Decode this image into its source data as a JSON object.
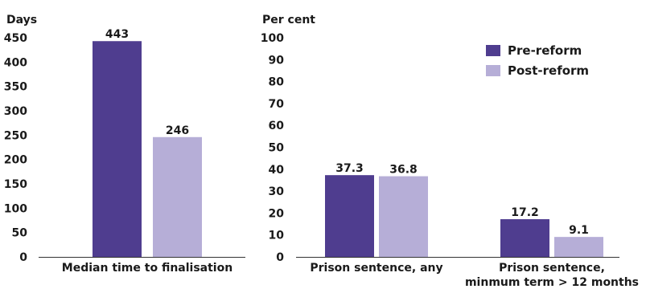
{
  "colors": {
    "pre": "#4f3d8f",
    "post": "#b6aed7",
    "axis": "#333333"
  },
  "legend": {
    "pre_label": "Pre-reform",
    "post_label": "Post-reform",
    "placement": "top-right"
  },
  "chart_data": [
    {
      "type": "bar",
      "ylabel": "Days",
      "ylim": [
        0,
        450
      ],
      "yticks": [
        0,
        50,
        100,
        150,
        200,
        250,
        300,
        350,
        400,
        450
      ],
      "categories": [
        "Median time to finalisation"
      ],
      "series": [
        {
          "name": "Pre-reform",
          "values": [
            443
          ]
        },
        {
          "name": "Post-reform",
          "values": [
            246
          ]
        }
      ]
    },
    {
      "type": "bar",
      "ylabel": "Per cent",
      "ylim": [
        0,
        100
      ],
      "yticks": [
        0,
        10,
        20,
        30,
        40,
        50,
        60,
        70,
        80,
        90,
        100
      ],
      "categories": [
        "Prison sentence, any",
        "Prison sentence, minmum term > 12 months"
      ],
      "category_lines": [
        [
          "Prison sentence, any"
        ],
        [
          "Prison sentence,",
          "minmum term > 12 months"
        ]
      ],
      "series": [
        {
          "name": "Pre-reform",
          "values": [
            37.3,
            17.2
          ]
        },
        {
          "name": "Post-reform",
          "values": [
            36.8,
            9.1
          ]
        }
      ]
    }
  ]
}
